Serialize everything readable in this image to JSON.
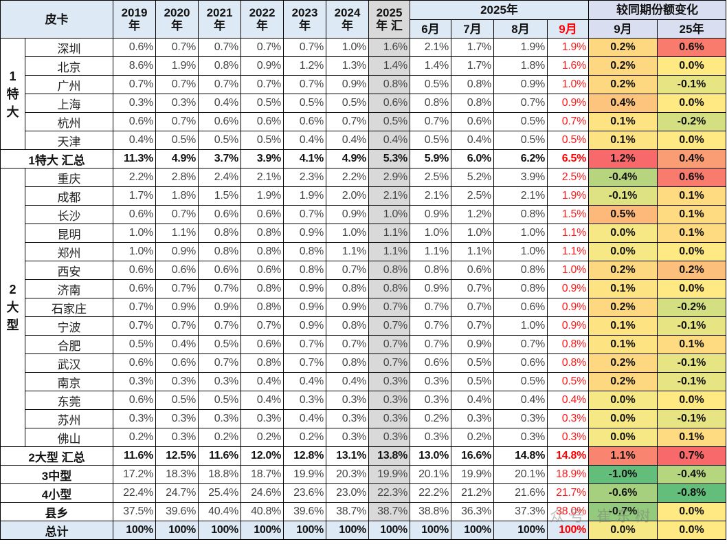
{
  "header": {
    "corner": "皮卡",
    "years": [
      "2019\n年",
      "2020\n年",
      "2021\n年",
      "2022\n年",
      "2023\n年",
      "2024\n年",
      "2025\n年 汇"
    ],
    "group_2025": "2025年",
    "months": [
      "6月",
      "7月",
      "8月",
      "9月"
    ],
    "change_group": "较同期份额变化",
    "change_cols": [
      "9月",
      "25年"
    ]
  },
  "colors": {
    "header_bg": "#dde9f5",
    "change_header_bg": "#d9dff0",
    "highlight_col": "#d9d9d9",
    "month_accent": "#ff0000"
  },
  "groups": [
    {
      "label": "1\n特\n大",
      "rows": [
        {
          "name": "深圳",
          "values": [
            "0.6%",
            "0.7%",
            "0.7%",
            "0.7%",
            "0.7%",
            "1.0%",
            "1.6%",
            "2.1%",
            "1.7%",
            "1.9%",
            "1.9%"
          ],
          "changes": [
            {
              "v": "0.2%",
              "c": "#fed880"
            },
            {
              "v": "0.6%",
              "c": "#f87b6e"
            }
          ]
        },
        {
          "name": "北京",
          "values": [
            "8.6%",
            "1.9%",
            "0.8%",
            "0.9%",
            "1.2%",
            "1.3%",
            "1.4%",
            "1.4%",
            "1.7%",
            "1.8%",
            "1.6%"
          ],
          "changes": [
            {
              "v": "0.2%",
              "c": "#fed880"
            },
            {
              "v": "0.0%",
              "c": "#fee983"
            }
          ]
        },
        {
          "name": "广州",
          "values": [
            "0.7%",
            "0.7%",
            "0.7%",
            "0.7%",
            "0.7%",
            "0.9%",
            "0.8%",
            "0.5%",
            "0.8%",
            "0.9%",
            "1.0%"
          ],
          "changes": [
            {
              "v": "0.2%",
              "c": "#fed880"
            },
            {
              "v": "-0.1%",
              "c": "#e6e483"
            }
          ]
        },
        {
          "name": "上海",
          "values": [
            "0.3%",
            "0.3%",
            "0.4%",
            "0.5%",
            "0.5%",
            "0.5%",
            "0.6%",
            "0.8%",
            "0.8%",
            "0.7%",
            "0.9%"
          ],
          "changes": [
            {
              "v": "0.4%",
              "c": "#fcc47c"
            },
            {
              "v": "0.0%",
              "c": "#fee983"
            }
          ]
        },
        {
          "name": "杭州",
          "values": [
            "0.6%",
            "0.7%",
            "0.6%",
            "0.6%",
            "0.6%",
            "0.7%",
            "0.5%",
            "0.7%",
            "0.6%",
            "0.5%",
            "0.7%"
          ],
          "changes": [
            {
              "v": "0.1%",
              "c": "#fee382"
            },
            {
              "v": "-0.2%",
              "c": "#d4df82"
            }
          ]
        },
        {
          "name": "天津",
          "values": [
            "0.4%",
            "0.5%",
            "0.5%",
            "0.5%",
            "0.4%",
            "0.4%",
            "0.4%",
            "0.5%",
            "0.4%",
            "0.5%",
            "0.5%"
          ],
          "changes": [
            {
              "v": "0.1%",
              "c": "#fee382"
            },
            {
              "v": "0.0%",
              "c": "#fee983"
            }
          ]
        }
      ],
      "summary": {
        "name": "1特大 汇总",
        "values": [
          "11.3%",
          "4.9%",
          "3.7%",
          "3.9%",
          "4.1%",
          "4.9%",
          "5.3%",
          "5.9%",
          "6.0%",
          "6.2%",
          "6.5%"
        ],
        "changes": [
          {
            "v": "1.2%",
            "c": "#f8696b"
          },
          {
            "v": "0.4%",
            "c": "#fa9d75"
          }
        ]
      }
    },
    {
      "label": "2\n大\n型",
      "rows": [
        {
          "name": "重庆",
          "values": [
            "2.2%",
            "2.8%",
            "2.4%",
            "2.1%",
            "2.3%",
            "2.2%",
            "2.9%",
            "2.5%",
            "5.2%",
            "3.9%",
            "2.5%"
          ],
          "changes": [
            {
              "v": "-0.4%",
              "c": "#b7d57f"
            },
            {
              "v": "0.6%",
              "c": "#f87b6e"
            }
          ]
        },
        {
          "name": "成都",
          "values": [
            "1.7%",
            "1.8%",
            "1.5%",
            "1.9%",
            "1.9%",
            "2.0%",
            "2.1%",
            "2.1%",
            "2.5%",
            "2.1%",
            "1.9%"
          ],
          "changes": [
            {
              "v": "-0.1%",
              "c": "#dfe283"
            },
            {
              "v": "0.1%",
              "c": "#fedb81"
            }
          ]
        },
        {
          "name": "长沙",
          "values": [
            "0.6%",
            "0.7%",
            "0.6%",
            "0.6%",
            "0.7%",
            "0.9%",
            "1.0%",
            "0.9%",
            "1.2%",
            "0.8%",
            "1.5%"
          ],
          "changes": [
            {
              "v": "0.5%",
              "c": "#fcb97a"
            },
            {
              "v": "0.1%",
              "c": "#fedb81"
            }
          ]
        },
        {
          "name": "昆明",
          "values": [
            "1.0%",
            "1.1%",
            "0.8%",
            "0.8%",
            "0.9%",
            "1.0%",
            "1.1%",
            "1.0%",
            "1.0%",
            "1.0%",
            "1.1%"
          ],
          "changes": [
            {
              "v": "0.0%",
              "c": "#f6e884"
            },
            {
              "v": "0.1%",
              "c": "#fedb81"
            }
          ]
        },
        {
          "name": "郑州",
          "values": [
            "1.0%",
            "0.9%",
            "0.8%",
            "0.8%",
            "0.8%",
            "1.1%",
            "1.1%",
            "1.1%",
            "1.1%",
            "1.0%",
            "1.1%"
          ],
          "changes": [
            {
              "v": "0.0%",
              "c": "#f6e884"
            },
            {
              "v": "0.0%",
              "c": "#fee983"
            }
          ]
        },
        {
          "name": "西安",
          "values": [
            "0.6%",
            "0.6%",
            "0.6%",
            "0.6%",
            "0.8%",
            "0.7%",
            "0.8%",
            "0.8%",
            "0.6%",
            "0.8%",
            "1.0%"
          ],
          "changes": [
            {
              "v": "0.2%",
              "c": "#fed880"
            },
            {
              "v": "0.2%",
              "c": "#fdc07c"
            }
          ]
        },
        {
          "name": "济南",
          "values": [
            "0.6%",
            "0.7%",
            "0.7%",
            "0.8%",
            "0.9%",
            "0.8%",
            "0.8%",
            "0.9%",
            "0.7%",
            "0.8%",
            "0.9%"
          ],
          "changes": [
            {
              "v": "0.1%",
              "c": "#fee382"
            },
            {
              "v": "0.0%",
              "c": "#fee983"
            }
          ]
        },
        {
          "name": "石家庄",
          "values": [
            "0.7%",
            "0.9%",
            "0.9%",
            "0.8%",
            "0.9%",
            "0.9%",
            "0.7%",
            "0.7%",
            "0.7%",
            "0.6%",
            "0.9%"
          ],
          "changes": [
            {
              "v": "0.2%",
              "c": "#fed880"
            },
            {
              "v": "-0.2%",
              "c": "#d4df82"
            }
          ]
        },
        {
          "name": "宁波",
          "values": [
            "0.7%",
            "0.7%",
            "0.7%",
            "0.7%",
            "0.9%",
            "0.8%",
            "0.7%",
            "0.7%",
            "0.7%",
            "1.0%",
            "0.9%"
          ],
          "changes": [
            {
              "v": "0.1%",
              "c": "#fee382"
            },
            {
              "v": "-0.1%",
              "c": "#e6e483"
            }
          ]
        },
        {
          "name": "合肥",
          "values": [
            "0.5%",
            "0.4%",
            "0.5%",
            "0.6%",
            "0.7%",
            "0.7%",
            "0.7%",
            "0.7%",
            "0.9%",
            "0.7%",
            "0.8%"
          ],
          "changes": [
            {
              "v": "0.1%",
              "c": "#fee382"
            },
            {
              "v": "0.1%",
              "c": "#fedb81"
            }
          ]
        },
        {
          "name": "武汉",
          "values": [
            "0.6%",
            "0.6%",
            "0.7%",
            "0.8%",
            "0.7%",
            "0.8%",
            "0.7%",
            "0.6%",
            "0.5%",
            "0.6%",
            "0.8%"
          ],
          "changes": [
            {
              "v": "0.2%",
              "c": "#fed880"
            },
            {
              "v": "-0.1%",
              "c": "#e6e483"
            }
          ]
        },
        {
          "name": "南京",
          "values": [
            "0.3%",
            "0.3%",
            "0.3%",
            "0.4%",
            "0.4%",
            "0.4%",
            "0.3%",
            "0.3%",
            "0.5%",
            "0.5%",
            "0.5%"
          ],
          "changes": [
            {
              "v": "0.2%",
              "c": "#fed880"
            },
            {
              "v": "-0.1%",
              "c": "#e6e483"
            }
          ]
        },
        {
          "name": "东莞",
          "values": [
            "0.6%",
            "0.5%",
            "0.5%",
            "0.4%",
            "0.3%",
            "0.3%",
            "0.3%",
            "0.3%",
            "0.4%",
            "0.4%",
            "0.4%"
          ],
          "changes": [
            {
              "v": "0.0%",
              "c": "#f6e884"
            },
            {
              "v": "0.0%",
              "c": "#fee983"
            }
          ]
        },
        {
          "name": "苏州",
          "values": [
            "0.3%",
            "0.3%",
            "0.3%",
            "0.3%",
            "0.4%",
            "0.3%",
            "0.3%",
            "0.2%",
            "0.3%",
            "0.3%",
            "0.3%"
          ],
          "changes": [
            {
              "v": "0.0%",
              "c": "#f6e884"
            },
            {
              "v": "-0.1%",
              "c": "#e6e483"
            }
          ]
        },
        {
          "name": "佛山",
          "values": [
            "0.2%",
            "0.3%",
            "0.2%",
            "0.2%",
            "0.2%",
            "0.3%",
            "0.3%",
            "0.3%",
            "0.2%",
            "0.3%",
            "0.3%"
          ],
          "changes": [
            {
              "v": "0.0%",
              "c": "#f6e884"
            },
            {
              "v": "0.1%",
              "c": "#fedb81"
            }
          ]
        }
      ],
      "summary": {
        "name": "2大型 汇总",
        "values": [
          "11.6%",
          "12.5%",
          "11.6%",
          "12.0%",
          "12.8%",
          "13.1%",
          "13.8%",
          "13.0%",
          "16.6%",
          "14.8%",
          "14.8%"
        ],
        "changes": [
          {
            "v": "1.1%",
            "c": "#f98570"
          },
          {
            "v": "0.7%",
            "c": "#f8696b"
          }
        ]
      }
    }
  ],
  "other_rows": [
    {
      "name": "3中型",
      "values": [
        "17.2%",
        "18.3%",
        "18.8%",
        "18.7%",
        "19.9%",
        "20.3%",
        "19.9%",
        "20.1%",
        "19.9%",
        "20.1%",
        "18.9%"
      ],
      "changes": [
        {
          "v": "-1.0%",
          "c": "#63be7b"
        },
        {
          "v": "-0.4%",
          "c": "#b5d57f"
        }
      ]
    },
    {
      "name": "4小型",
      "values": [
        "22.4%",
        "24.7%",
        "25.4%",
        "24.6%",
        "23.6%",
        "23.0%",
        "22.3%",
        "22.2%",
        "21.2%",
        "21.6%",
        "21.7%"
      ],
      "changes": [
        {
          "v": "-0.6%",
          "c": "#a6d07e"
        },
        {
          "v": "-0.8%",
          "c": "#63be7b"
        }
      ]
    },
    {
      "name": "县乡",
      "values": [
        "37.5%",
        "39.6%",
        "40.4%",
        "40.8%",
        "39.6%",
        "38.7%",
        "38.7%",
        "38.8%",
        "36.3%",
        "37.3%",
        "38.0%"
      ],
      "changes": [
        {
          "v": "-0.7%",
          "c": "#93ca7d"
        },
        {
          "v": "0.0%",
          "c": "#fee983"
        }
      ]
    }
  ],
  "total_row": {
    "name": "总计",
    "values": [
      "100%",
      "100%",
      "100%",
      "100%",
      "100%",
      "100%",
      "100%",
      "100%",
      "100%",
      "100%",
      "100%"
    ],
    "changes": [
      {
        "v": "0.0%",
        "c": "#f6e884"
      },
      {
        "v": "0.0%",
        "c": "#fee983"
      }
    ]
  },
  "watermark": "众号  崔东树"
}
